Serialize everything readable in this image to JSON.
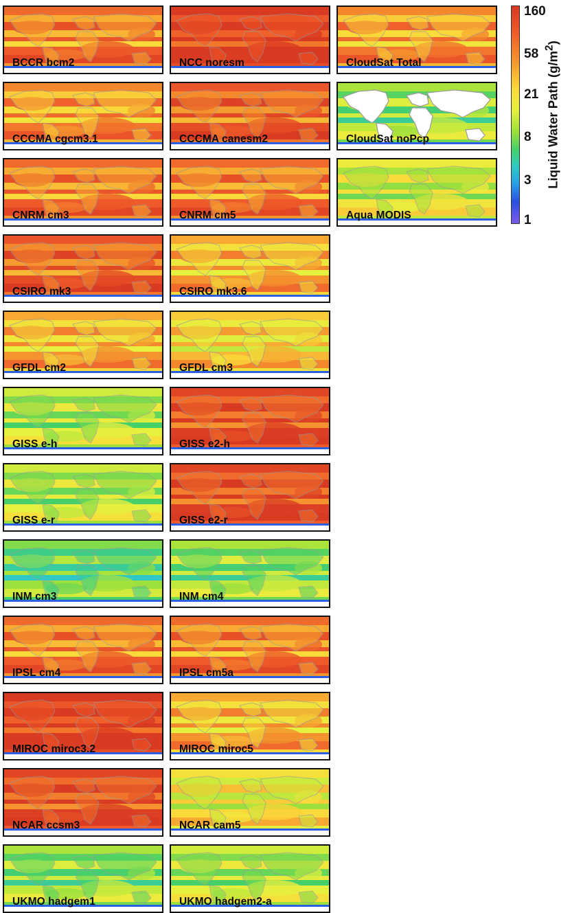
{
  "colorbar": {
    "title": "Liquid Water Path (g/m²)",
    "ticks": [
      "160",
      "58",
      "21",
      "8",
      "3",
      "1"
    ],
    "colors": [
      "#d83a22",
      "#f5942e",
      "#fbd93a",
      "#9be03c",
      "#2ec9c4",
      "#2a4fe0",
      "#7b5bea"
    ]
  },
  "panels": [
    {
      "label": "BCCR bcm2",
      "level": 0.8
    },
    {
      "label": "NCC noresm",
      "level": 0.95
    },
    {
      "label": "CloudSat Total",
      "level": 0.75
    },
    {
      "label": "CCCMA cgcm3.1",
      "level": 0.75
    },
    {
      "label": "CCCMA canesm2",
      "level": 0.85
    },
    {
      "label": "CloudSat noPcp",
      "level": 0.45
    },
    {
      "label": "CNRM cm3",
      "level": 0.8
    },
    {
      "label": "CNRM cm5",
      "level": 0.8
    },
    {
      "label": "Aqua MODIS",
      "level": 0.55
    },
    {
      "label": "CSIRO mk3",
      "level": 0.85
    },
    {
      "label": "CSIRO mk3.6",
      "level": 0.7
    },
    {
      "label": "GFDL cm2",
      "level": 0.7
    },
    {
      "label": "GFDL cm3",
      "level": 0.65
    },
    {
      "label": "GISS e-h",
      "level": 0.5
    },
    {
      "label": "GISS e2-h",
      "level": 0.9
    },
    {
      "label": "GISS e-r",
      "level": 0.5
    },
    {
      "label": "GISS e2-r",
      "level": 0.9
    },
    {
      "label": "INM cm3",
      "level": 0.4
    },
    {
      "label": "INM cm4",
      "level": 0.45
    },
    {
      "label": "IPSL cm4",
      "level": 0.8
    },
    {
      "label": "IPSL cm5a",
      "level": 0.8
    },
    {
      "label": "MIROC miroc3.2",
      "level": 0.95
    },
    {
      "label": "MIROC miroc5",
      "level": 0.7
    },
    {
      "label": "NCAR ccsm3",
      "level": 0.9
    },
    {
      "label": "NCAR cam5",
      "level": 0.6
    },
    {
      "label": "UKMO hadgem1",
      "level": 0.45
    },
    {
      "label": "UKMO hadgem2-a",
      "level": 0.5
    }
  ]
}
